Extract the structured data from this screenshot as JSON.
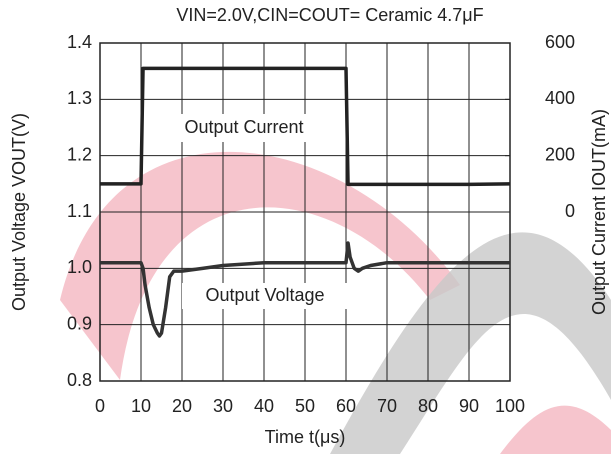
{
  "chart_data": {
    "type": "line",
    "title": "VIN=2.0V,CIN=COUT= Ceramic 4.7μF",
    "x_label": "Time t(μs)",
    "y_label": "Output Voltage VOUT(V)",
    "y2_label": "Output Current IOUT(mA)",
    "annotations": [
      "Output Current",
      "Output Voltage"
    ],
    "x": [
      0,
      10,
      10.5,
      11,
      12,
      13,
      14,
      14.5,
      15,
      16,
      17,
      18,
      20,
      25,
      30,
      40,
      50,
      60,
      60.5,
      61,
      62,
      63,
      64,
      66,
      70,
      80,
      90,
      100
    ],
    "series": [
      {
        "name": "Output Voltage",
        "color": "#333333",
        "values": [
          1.01,
          1.01,
          1.0,
          0.97,
          0.93,
          0.9,
          0.885,
          0.88,
          0.885,
          0.93,
          0.985,
          0.995,
          0.995,
          1.0,
          1.005,
          1.01,
          1.01,
          1.01,
          1.045,
          1.02,
          1.0,
          0.995,
          1.0,
          1.005,
          1.01,
          1.01,
          1.01,
          1.01
        ]
      },
      {
        "name": "Output Current",
        "color": "#222222",
        "axis": "y2",
        "values": [
          100,
          100,
          510,
          510,
          510,
          510,
          510,
          510,
          510,
          510,
          510,
          510,
          510,
          510,
          510,
          510,
          510,
          510,
          98,
          98,
          98,
          98,
          98,
          98,
          98,
          98,
          98,
          100
        ]
      }
    ],
    "xlim": [
      0,
      100
    ],
    "xticks": [
      0,
      10,
      20,
      30,
      40,
      50,
      60,
      70,
      80,
      90,
      100
    ],
    "ylim": [
      0.8,
      1.4
    ],
    "yticks": [
      0.8,
      0.9,
      {
        "value": 1.0,
        "label": "1.0"
      },
      1.1,
      1.2,
      1.3,
      1.4
    ],
    "y2lim": [
      -600,
      600
    ],
    "y2ticks": [
      0,
      200,
      400,
      600
    ],
    "grid": true
  }
}
